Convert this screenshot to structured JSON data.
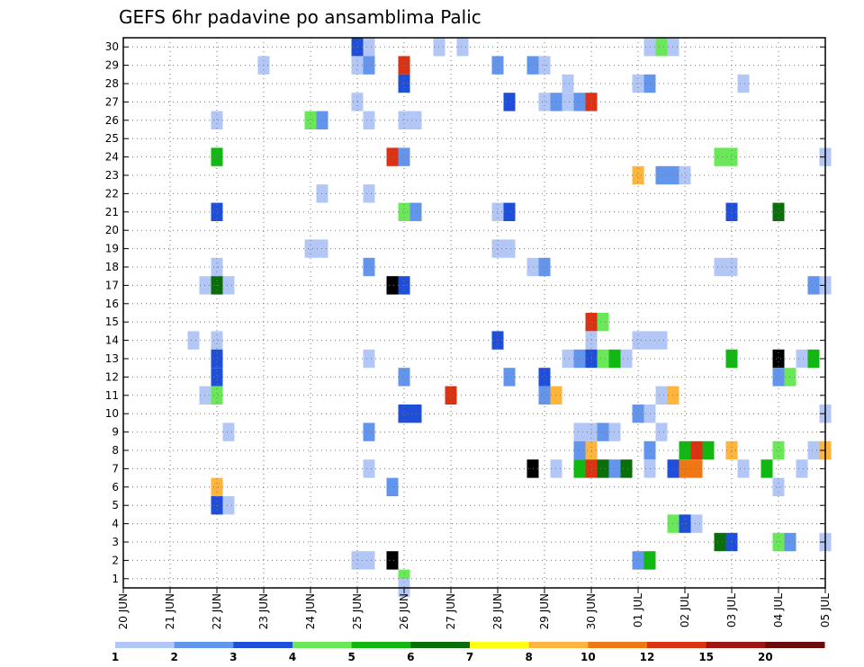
{
  "chart_data": {
    "type": "heatmap",
    "title": "GEFS 6hr padavine po ansamblima Palic",
    "y_ticks": [
      "1",
      "2",
      "3",
      "4",
      "5",
      "6",
      "7",
      "8",
      "9",
      "10",
      "11",
      "12",
      "13",
      "14",
      "15",
      "16",
      "17",
      "18",
      "19",
      "20",
      "21",
      "22",
      "23",
      "24",
      "25",
      "26",
      "27",
      "28",
      "29",
      "30"
    ],
    "x_ticks": [
      "20 JUN",
      "21 JUN",
      "22 JUN",
      "23 JUN",
      "24 JUN",
      "25 JUN",
      "26 JUN",
      "27 JUN",
      "28 JUN",
      "29 JUN",
      "30 JUN",
      "01 JUL",
      "02 JUL",
      "03 JUL",
      "04 JUL",
      "05 JUL"
    ],
    "x_range_days": [
      0,
      15
    ],
    "y_range": [
      0.5,
      30.5
    ],
    "colorbar": {
      "labels": [
        "1",
        "2",
        "3",
        "4",
        "5",
        "6",
        "7",
        "8",
        "10",
        "12",
        "15",
        "20"
      ],
      "colors": [
        "#b3c7f7",
        "#6495ed",
        "#1f4fd8",
        "#6be85a",
        "#12b812",
        "#0a6f0a",
        "#ffff14",
        "#ffb43c",
        "#f07814",
        "#dc3214",
        "#a01414",
        "#6b0a0a"
      ]
    },
    "cells": [
      [
        5,
        30,
        3
      ],
      [
        5.25,
        30,
        1
      ],
      [
        6.75,
        30,
        1
      ],
      [
        7.25,
        30,
        1
      ],
      [
        11.25,
        30,
        1
      ],
      [
        11.5,
        30,
        4
      ],
      [
        11.75,
        30,
        1
      ],
      [
        3,
        29,
        1
      ],
      [
        5,
        29,
        1
      ],
      [
        5.25,
        29,
        2
      ],
      [
        6,
        29,
        10
      ],
      [
        8,
        29,
        2
      ],
      [
        8.75,
        29,
        2
      ],
      [
        9,
        29,
        1
      ],
      [
        6,
        28,
        3
      ],
      [
        9.5,
        28,
        1
      ],
      [
        11,
        28,
        1
      ],
      [
        11.25,
        28,
        2
      ],
      [
        13.25,
        28,
        1
      ],
      [
        5,
        27,
        1
      ],
      [
        8.25,
        27,
        3
      ],
      [
        9,
        27,
        1
      ],
      [
        9.25,
        27,
        2
      ],
      [
        9.5,
        27,
        1
      ],
      [
        9.75,
        27,
        2
      ],
      [
        10,
        27,
        10
      ],
      [
        2,
        26,
        1
      ],
      [
        4,
        26,
        4
      ],
      [
        4.25,
        26,
        2
      ],
      [
        5.25,
        26,
        1
      ],
      [
        6,
        26,
        1
      ],
      [
        6.25,
        26,
        1
      ],
      [
        2,
        24,
        5
      ],
      [
        5.75,
        24,
        10
      ],
      [
        6,
        24,
        2
      ],
      [
        12.75,
        24,
        4
      ],
      [
        13,
        24,
        4
      ],
      [
        15,
        24,
        1
      ],
      [
        11,
        23,
        8
      ],
      [
        11.5,
        23,
        2
      ],
      [
        11.75,
        23,
        2
      ],
      [
        12,
        23,
        1
      ],
      [
        4.25,
        22,
        1
      ],
      [
        5.25,
        22,
        1
      ],
      [
        2,
        21,
        3
      ],
      [
        6,
        21,
        4
      ],
      [
        6.25,
        21,
        2
      ],
      [
        8,
        21,
        1
      ],
      [
        8.25,
        21,
        3
      ],
      [
        13,
        21,
        3
      ],
      [
        14,
        21,
        6
      ],
      [
        4,
        19,
        1
      ],
      [
        4.25,
        19,
        1
      ],
      [
        8,
        19,
        1
      ],
      [
        8.25,
        19,
        1
      ],
      [
        2,
        18,
        1
      ],
      [
        5.25,
        18,
        2
      ],
      [
        8.75,
        18,
        1
      ],
      [
        9,
        18,
        2
      ],
      [
        12.75,
        18,
        1
      ],
      [
        13,
        18,
        1
      ],
      [
        1.75,
        17,
        1
      ],
      [
        2,
        17,
        6
      ],
      [
        2.25,
        17,
        1
      ],
      [
        5.75,
        17,
        20
      ],
      [
        6,
        17,
        3
      ],
      [
        14.75,
        17,
        2
      ],
      [
        15,
        17,
        1
      ],
      [
        10,
        15,
        10
      ],
      [
        10.25,
        15,
        4
      ],
      [
        1.5,
        14,
        1
      ],
      [
        2,
        14,
        1
      ],
      [
        8,
        14,
        3
      ],
      [
        10,
        14,
        1
      ],
      [
        11,
        14,
        1
      ],
      [
        11.25,
        14,
        1
      ],
      [
        11.5,
        14,
        1
      ],
      [
        2,
        13,
        3
      ],
      [
        5.25,
        13,
        1
      ],
      [
        9.5,
        13,
        1
      ],
      [
        9.75,
        13,
        2
      ],
      [
        10,
        13,
        3
      ],
      [
        10.25,
        13,
        4
      ],
      [
        10.5,
        13,
        5
      ],
      [
        10.75,
        13,
        1
      ],
      [
        13,
        13,
        5
      ],
      [
        14,
        13,
        20
      ],
      [
        14.5,
        13,
        1
      ],
      [
        14.75,
        13,
        5
      ],
      [
        2,
        12,
        3
      ],
      [
        6,
        12,
        2
      ],
      [
        8.25,
        12,
        2
      ],
      [
        9,
        12,
        3
      ],
      [
        14,
        12,
        2
      ],
      [
        14.25,
        12,
        4
      ],
      [
        1.75,
        11,
        1
      ],
      [
        2,
        11,
        4
      ],
      [
        7,
        11,
        10
      ],
      [
        9,
        11,
        2
      ],
      [
        9.25,
        11,
        8
      ],
      [
        11.5,
        11,
        1
      ],
      [
        11.75,
        11,
        8
      ],
      [
        6,
        10,
        3
      ],
      [
        6.25,
        10,
        3
      ],
      [
        11,
        10,
        2
      ],
      [
        11.25,
        10,
        1
      ],
      [
        15,
        10,
        1
      ],
      [
        2.25,
        9,
        1
      ],
      [
        5.25,
        9,
        2
      ],
      [
        9.75,
        9,
        1
      ],
      [
        10,
        9,
        1
      ],
      [
        10.25,
        9,
        2
      ],
      [
        10.5,
        9,
        1
      ],
      [
        11.5,
        9,
        1
      ],
      [
        9.75,
        8,
        2
      ],
      [
        10,
        8,
        8
      ],
      [
        11.25,
        8,
        2
      ],
      [
        12,
        8,
        5
      ],
      [
        12.25,
        8,
        10
      ],
      [
        12.5,
        8,
        5
      ],
      [
        13,
        8,
        8
      ],
      [
        14,
        8,
        4
      ],
      [
        14.75,
        8,
        1
      ],
      [
        15,
        8,
        8
      ],
      [
        5.25,
        7,
        1
      ],
      [
        8.75,
        7,
        15
      ],
      [
        9.25,
        7,
        1
      ],
      [
        9.75,
        7,
        5
      ],
      [
        10,
        7,
        10
      ],
      [
        10.25,
        7,
        6
      ],
      [
        10.5,
        7,
        2
      ],
      [
        10.75,
        7,
        6
      ],
      [
        11.25,
        7,
        1
      ],
      [
        11.75,
        7,
        3
      ],
      [
        12,
        7,
        9
      ],
      [
        12.25,
        7,
        9
      ],
      [
        13.25,
        7,
        1
      ],
      [
        13.75,
        7,
        5
      ],
      [
        14.5,
        7,
        1
      ],
      [
        2,
        6,
        8
      ],
      [
        5.75,
        6,
        2
      ],
      [
        14,
        6,
        1
      ],
      [
        2,
        5,
        3
      ],
      [
        2.25,
        5,
        1
      ],
      [
        11.75,
        4,
        4
      ],
      [
        12,
        4,
        3
      ],
      [
        12.25,
        4,
        1
      ],
      [
        12.75,
        3,
        6
      ],
      [
        13,
        3,
        3
      ],
      [
        14,
        3,
        4
      ],
      [
        14.25,
        3,
        2
      ],
      [
        15,
        3,
        1
      ],
      [
        5,
        2,
        1
      ],
      [
        5.25,
        2,
        1
      ],
      [
        5.75,
        2,
        20
      ],
      [
        11,
        2,
        2
      ],
      [
        11.25,
        2,
        5
      ],
      [
        6,
        1,
        4
      ],
      [
        6,
        0.5,
        1
      ]
    ]
  }
}
